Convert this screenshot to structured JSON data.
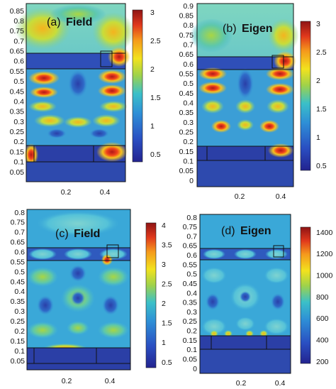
{
  "figure": {
    "panels": [
      {
        "id": "a",
        "label": "(a)",
        "name": "Field",
        "yticks": [
          "0.85",
          "0.8",
          "0.75",
          "0.7",
          "0.65",
          "0.6",
          "0.55",
          "0.5",
          "0.45",
          "0.4",
          "0.35",
          "0.3",
          "0.25",
          "0.2",
          "0.15",
          "0.1",
          "0.05"
        ],
        "xticks": [
          "0.2",
          "0.4"
        ],
        "colorbar_ticks": [
          "3",
          "2.5",
          "2",
          "1.5",
          "1",
          "0.5"
        ]
      },
      {
        "id": "b",
        "label": "(b)",
        "name": "Eigen",
        "yticks": [
          "0.9",
          "0.85",
          "0.8",
          "0.75",
          "0.7",
          "0.65",
          "0.6",
          "0.55",
          "0.5",
          "0.45",
          "0.4",
          "0.35",
          "0.3",
          "0.25",
          "0.2",
          "0.15",
          "0.1",
          "0.05",
          "0"
        ],
        "xticks": [
          "0.2",
          "0.4"
        ],
        "colorbar_ticks": [
          "3",
          "2.5",
          "2",
          "1.5",
          "1",
          "0.5"
        ]
      },
      {
        "id": "c",
        "label": "(c)",
        "name": "Field",
        "yticks": [
          "0.8",
          "0.75",
          "0.7",
          "0.65",
          "0.6",
          "0.55",
          "0.5",
          "0.45",
          "0.4",
          "0.35",
          "0.3",
          "0.25",
          "0.2",
          "0.15",
          "0.1",
          "0.05"
        ],
        "xticks": [
          "0.2",
          "0.4"
        ],
        "colorbar_ticks": [
          "4",
          "3.5",
          "3",
          "2.5",
          "2",
          "1.5",
          "1",
          "0.5"
        ]
      },
      {
        "id": "d",
        "label": "(d)",
        "name": "Eigen",
        "yticks": [
          "0.8",
          "0.75",
          "0.7",
          "0.65",
          "0.6",
          "0.55",
          "0.5",
          "0.45",
          "0.4",
          "0.35",
          "0.3",
          "0.25",
          "0.2",
          "0.15",
          "0.1",
          "0.05",
          "0"
        ],
        "xticks": [
          "0.2",
          "0.4"
        ],
        "colorbar_ticks": [
          "1400",
          "1200",
          "1000",
          "800",
          "600",
          "400",
          "200"
        ]
      }
    ]
  }
}
